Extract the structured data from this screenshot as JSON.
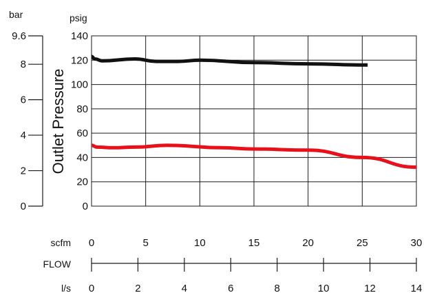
{
  "chart_data": {
    "type": "line",
    "ylabel": "Outlet Pressure",
    "xlabel": "FLOW",
    "units": {
      "bar": "bar",
      "psig": "psig",
      "scfm": "scfm",
      "ls": "l/s"
    },
    "psig_axis": {
      "min": 0,
      "max": 140,
      "ticks": [
        0,
        20,
        40,
        60,
        80,
        100,
        120,
        140
      ]
    },
    "bar_axis": {
      "min": 0,
      "max": 9.6,
      "ticks": [
        0,
        2,
        4,
        6,
        8,
        9.6
      ],
      "tick_labels": [
        "0",
        "2",
        "4",
        "6",
        "8",
        "9.6"
      ]
    },
    "scfm_axis": {
      "min": 0,
      "max": 30,
      "ticks": [
        0,
        5,
        10,
        15,
        20,
        25,
        30
      ]
    },
    "ls_axis": {
      "min": 0,
      "max": 14,
      "ticks": [
        0,
        2,
        4,
        6,
        8,
        10,
        12,
        14
      ]
    },
    "grid": true,
    "series": [
      {
        "color": "#111111",
        "points": [
          [
            0,
            123
          ],
          [
            0.3,
            121
          ],
          [
            1,
            119.5
          ],
          [
            4,
            121
          ],
          [
            6,
            119
          ],
          [
            8,
            119
          ],
          [
            10,
            120
          ],
          [
            15,
            118
          ],
          [
            20,
            117
          ],
          [
            25.5,
            116
          ]
        ]
      },
      {
        "color": "#e8101a",
        "points": [
          [
            0,
            50
          ],
          [
            0.5,
            48.5
          ],
          [
            2,
            48
          ],
          [
            4,
            48.5
          ],
          [
            7,
            50
          ],
          [
            12,
            48
          ],
          [
            15,
            47
          ],
          [
            20,
            46
          ],
          [
            25,
            40
          ],
          [
            30,
            32
          ]
        ]
      }
    ]
  }
}
